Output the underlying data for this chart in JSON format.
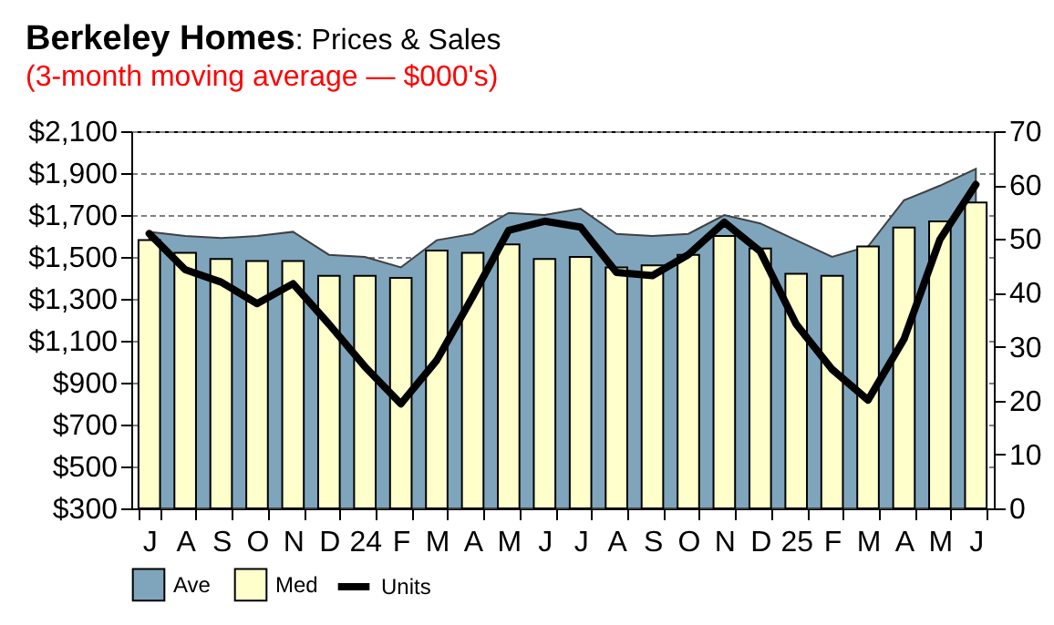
{
  "chart_data": {
    "type": "bar",
    "title": "Berkeley Homes: Prices & Sales",
    "subtitle": "(3-month moving average — $000's)",
    "categories": [
      "J",
      "A",
      "S",
      "O",
      "N",
      "D",
      "24",
      "F",
      "M",
      "A",
      "M",
      "J",
      "J",
      "A",
      "S",
      "O",
      "N",
      "D",
      "25",
      "F",
      "M",
      "A",
      "M",
      "J"
    ],
    "series": [
      {
        "name": "Ave",
        "type": "area",
        "color": "#7fa5bd",
        "values": [
          1620,
          1600,
          1590,
          1600,
          1620,
          1510,
          1500,
          1450,
          1580,
          1610,
          1710,
          1700,
          1730,
          1610,
          1600,
          1610,
          1700,
          1660,
          1580,
          1500,
          1550,
          1770,
          1840,
          1920
        ]
      },
      {
        "name": "Med",
        "type": "bar",
        "color": "#ffffcc",
        "values": [
          1580,
          1520,
          1490,
          1480,
          1480,
          1410,
          1410,
          1400,
          1530,
          1520,
          1560,
          1490,
          1500,
          1450,
          1460,
          1510,
          1600,
          1540,
          1420,
          1410,
          1550,
          1640,
          1670,
          1760
        ]
      },
      {
        "name": "Units",
        "type": "line",
        "axis": "y2",
        "color": "#000000",
        "values": [
          51,
          44.3,
          42,
          38,
          41.7,
          34.2,
          26.3,
          19.4,
          27.5,
          39.3,
          51.6,
          53.3,
          52.2,
          43.8,
          43.2,
          47.1,
          53.1,
          47.7,
          34.2,
          25.8,
          20.1,
          31.4,
          49.9,
          60.1
        ]
      }
    ],
    "ylim": [
      300,
      2100
    ],
    "yticks": [
      {
        "value": 300,
        "label": "$300"
      },
      {
        "value": 500,
        "label": "$500"
      },
      {
        "value": 700,
        "label": "$700"
      },
      {
        "value": 900,
        "label": "$900"
      },
      {
        "value": 1100,
        "label": "$1,100"
      },
      {
        "value": 1300,
        "label": "$1,300"
      },
      {
        "value": 1500,
        "label": "$1,500"
      },
      {
        "value": 1700,
        "label": "$1,700"
      },
      {
        "value": 1900,
        "label": "$1,900"
      },
      {
        "value": 2100,
        "label": "$2,100"
      }
    ],
    "y2lim": [
      0,
      70
    ],
    "y2ticks": [
      0,
      10,
      20,
      30,
      40,
      50,
      60,
      70
    ],
    "grid": "y",
    "legend": "bottom left"
  }
}
